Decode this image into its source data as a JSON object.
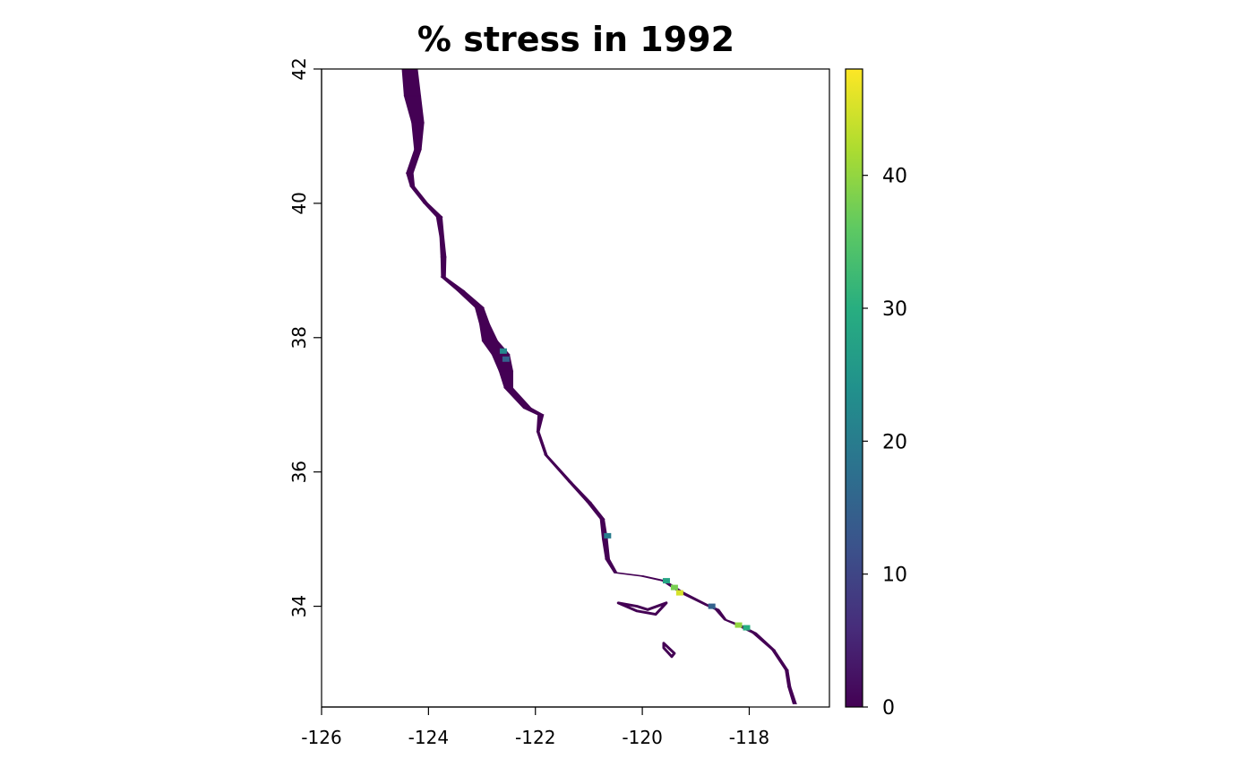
{
  "title": "% stress in 1992",
  "map": {
    "x_axis": {
      "range": [
        -126,
        -116.5
      ],
      "ticks": [
        -126,
        -124,
        -122,
        -120,
        -118
      ],
      "tick_labels": [
        "-126",
        "-124",
        "-122",
        "-120",
        "-118"
      ]
    },
    "y_axis": {
      "range": [
        32.5,
        42
      ],
      "ticks": [
        34,
        36,
        38,
        40,
        42
      ],
      "tick_labels": [
        "34",
        "36",
        "38",
        "40",
        "42"
      ]
    },
    "coastline_band": [
      [
        -124.35,
        42.0,
        0.28
      ],
      [
        -124.3,
        41.6,
        0.3
      ],
      [
        -124.2,
        41.2,
        0.22
      ],
      [
        -124.2,
        40.8,
        0.12
      ],
      [
        -124.35,
        40.45,
        0.12
      ],
      [
        -124.3,
        40.25,
        0.07
      ],
      [
        -124.05,
        40.0,
        0.07
      ],
      [
        -123.8,
        39.8,
        0.1
      ],
      [
        -123.75,
        39.5,
        0.07
      ],
      [
        -123.72,
        39.2,
        0.09
      ],
      [
        -123.72,
        38.9,
        0.07
      ],
      [
        -123.4,
        38.7,
        0.12
      ],
      [
        -123.05,
        38.45,
        0.15
      ],
      [
        -122.95,
        38.2,
        0.18
      ],
      [
        -122.85,
        37.95,
        0.28
      ],
      [
        -122.65,
        37.75,
        0.32
      ],
      [
        -122.55,
        37.5,
        0.25
      ],
      [
        -122.5,
        37.25,
        0.15
      ],
      [
        -122.15,
        36.95,
        0.14
      ],
      [
        -121.9,
        36.85,
        0.1
      ],
      [
        -121.95,
        36.6,
        0.04
      ],
      [
        -121.8,
        36.25,
        0.04
      ],
      [
        -121.35,
        35.85,
        0.05
      ],
      [
        -121.0,
        35.55,
        0.07
      ],
      [
        -120.75,
        35.3,
        0.07
      ],
      [
        -120.7,
        35.0,
        0.09
      ],
      [
        -120.65,
        34.7,
        0.07
      ],
      [
        -120.5,
        34.5,
        0.05
      ],
      [
        -120.0,
        34.45,
        0.05
      ],
      [
        -119.6,
        34.38,
        0.06
      ],
      [
        -119.25,
        34.2,
        0.08
      ],
      [
        -118.8,
        34.02,
        0.06
      ],
      [
        -118.6,
        33.95,
        0.07
      ],
      [
        -118.45,
        33.8,
        0.04
      ],
      [
        -118.2,
        33.72,
        0.08
      ],
      [
        -117.9,
        33.6,
        0.07
      ],
      [
        -117.55,
        33.35,
        0.05
      ],
      [
        -117.3,
        33.05,
        0.05
      ],
      [
        -117.25,
        32.8,
        0.05
      ],
      [
        -117.15,
        32.55,
        0.06
      ]
    ],
    "islands": [
      [
        [
          -120.45,
          34.05
        ],
        [
          -120.1,
          34.0
        ],
        [
          -119.9,
          33.95
        ],
        [
          -119.55,
          34.05
        ],
        [
          -119.75,
          33.88
        ],
        [
          -120.1,
          33.93
        ]
      ],
      [
        [
          -119.6,
          33.45
        ],
        [
          -119.4,
          33.3
        ],
        [
          -119.45,
          33.25
        ],
        [
          -119.6,
          33.38
        ]
      ]
    ],
    "hotspots": [
      {
        "lon": -122.6,
        "lat": 37.8,
        "value": 22
      },
      {
        "lon": -122.55,
        "lat": 37.68,
        "value": 15
      },
      {
        "lon": -120.65,
        "lat": 35.05,
        "value": 20
      },
      {
        "lon": -119.55,
        "lat": 34.38,
        "value": 28
      },
      {
        "lon": -119.4,
        "lat": 34.28,
        "value": 38
      },
      {
        "lon": -119.3,
        "lat": 34.2,
        "value": 45
      },
      {
        "lon": -118.7,
        "lat": 34.0,
        "value": 15
      },
      {
        "lon": -118.2,
        "lat": 33.72,
        "value": 40
      },
      {
        "lon": -118.05,
        "lat": 33.68,
        "value": 30
      }
    ]
  },
  "colorbar": {
    "range": [
      0,
      48
    ],
    "ticks": [
      0,
      10,
      20,
      30,
      40
    ],
    "tick_labels": [
      "0",
      "10",
      "20",
      "30",
      "40"
    ],
    "palette": "viridis",
    "colors": [
      "#440154",
      "#472d7b",
      "#3b528b",
      "#2c728e",
      "#21918c",
      "#28ae80",
      "#5ec962",
      "#addc30",
      "#fde725"
    ]
  }
}
